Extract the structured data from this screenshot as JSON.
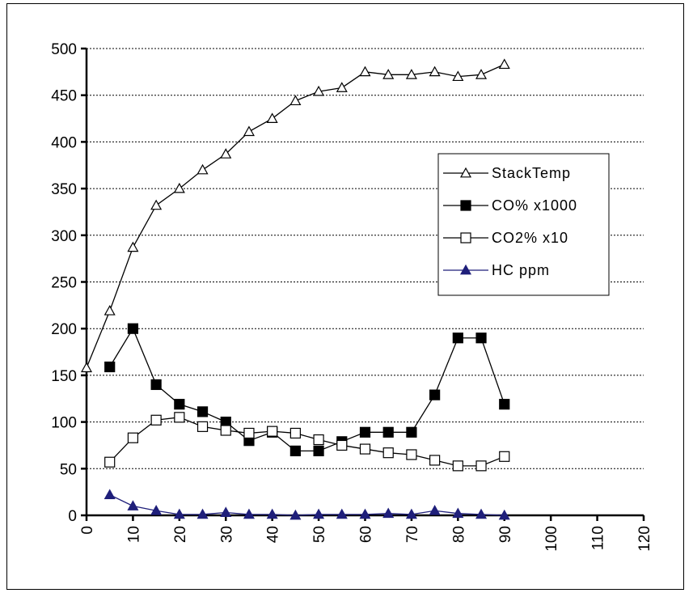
{
  "chart_data": {
    "type": "line",
    "title": "",
    "xlabel": "",
    "ylabel": "",
    "xlim": [
      0,
      120
    ],
    "ylim": [
      0,
      500
    ],
    "x_ticks": [
      0,
      10,
      20,
      30,
      40,
      50,
      60,
      70,
      80,
      90,
      100,
      110,
      120
    ],
    "y_ticks": [
      0,
      50,
      100,
      150,
      200,
      250,
      300,
      350,
      400,
      450,
      500
    ],
    "grid": "horizontal-dashed",
    "legend_position": "right",
    "series": [
      {
        "name": "StackTemp",
        "marker": "open-triangle",
        "color": "#000000",
        "x": [
          0,
          5,
          10,
          15,
          20,
          25,
          30,
          35,
          40,
          45,
          50,
          55,
          60,
          65,
          70,
          75,
          80,
          85,
          90
        ],
        "values": [
          158,
          219,
          287,
          332,
          350,
          370,
          387,
          411,
          425,
          444,
          454,
          458,
          475,
          472,
          472,
          475,
          470,
          472,
          483
        ]
      },
      {
        "name": "CO% x1000",
        "marker": "filled-square",
        "color": "#000000",
        "x": [
          5,
          10,
          15,
          20,
          25,
          30,
          35,
          40,
          45,
          50,
          55,
          60,
          65,
          70,
          75,
          80,
          85,
          90
        ],
        "values": [
          159,
          200,
          140,
          119,
          111,
          100,
          80,
          89,
          69,
          69,
          79,
          89,
          89,
          89,
          129,
          190,
          190,
          119
        ]
      },
      {
        "name": "CO2% x10",
        "marker": "open-square",
        "color": "#000000",
        "x": [
          5,
          10,
          15,
          20,
          25,
          30,
          35,
          40,
          45,
          50,
          55,
          60,
          65,
          70,
          75,
          80,
          85,
          90
        ],
        "values": [
          57,
          83,
          102,
          105,
          95,
          91,
          88,
          90,
          88,
          81,
          75,
          71,
          67,
          65,
          59,
          53,
          53,
          63
        ]
      },
      {
        "name": "HC ppm",
        "marker": "filled-triangle",
        "color": "#1f1f7a",
        "x": [
          5,
          10,
          15,
          20,
          25,
          30,
          35,
          40,
          45,
          50,
          55,
          60,
          65,
          70,
          75,
          80,
          85,
          90
        ],
        "values": [
          22,
          10,
          5,
          1,
          1,
          3,
          1,
          1,
          0,
          1,
          1,
          1,
          2,
          1,
          5,
          2,
          1,
          0
        ]
      }
    ]
  }
}
